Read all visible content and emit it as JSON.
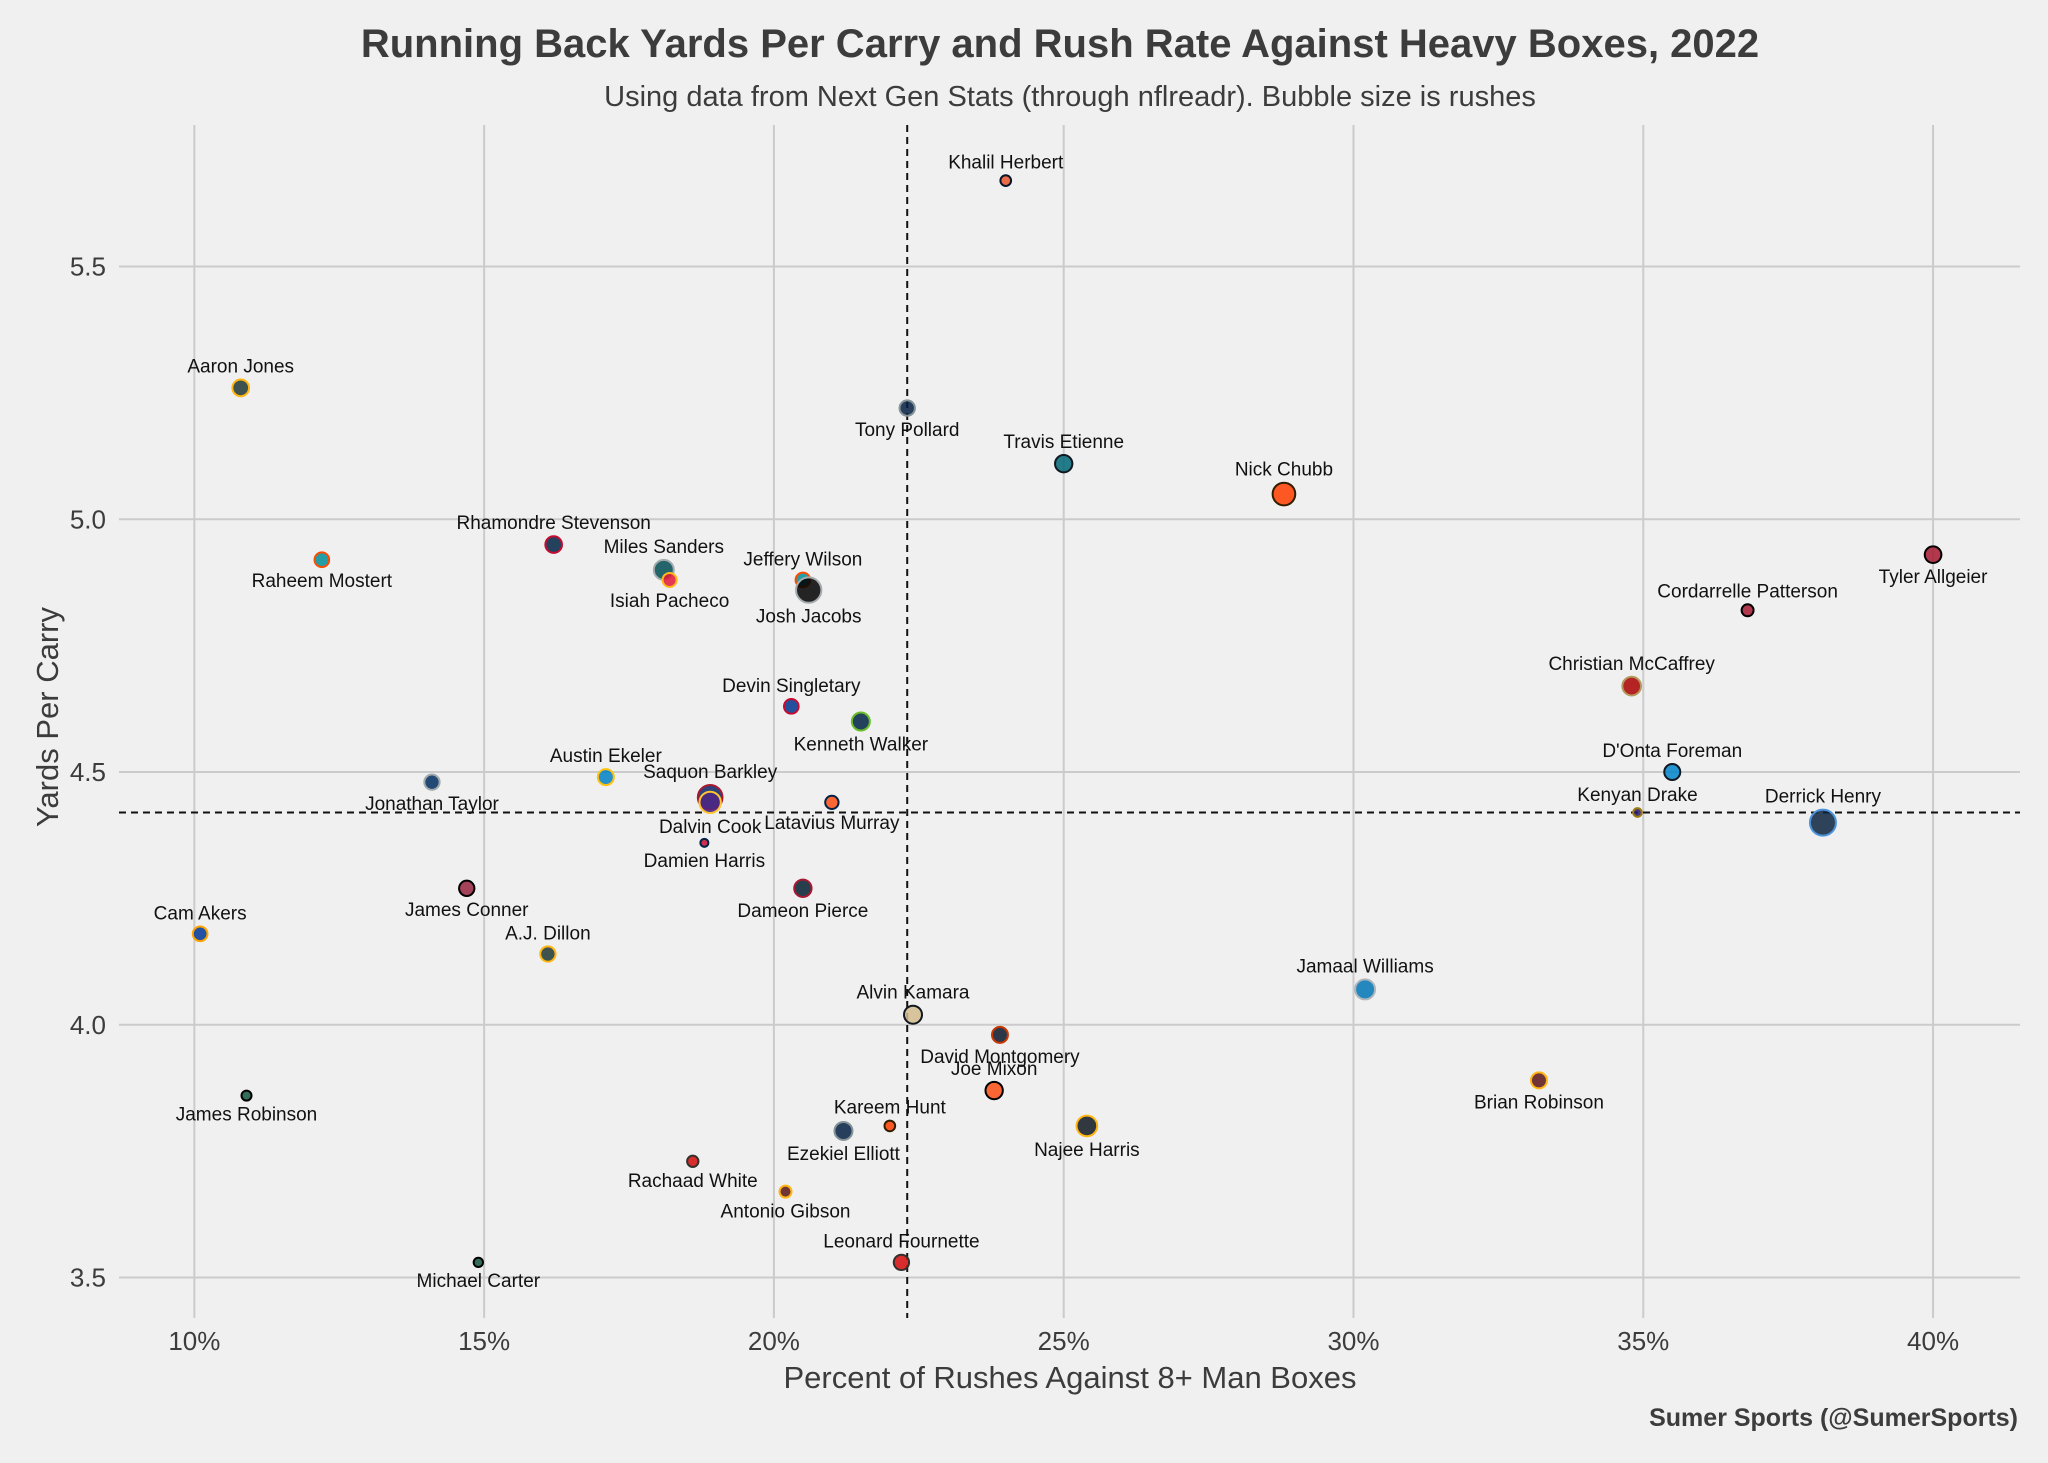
{
  "chart_data": {
    "type": "scatter",
    "title": "Running Back Yards Per Carry and Rush Rate Against Heavy Boxes, 2022",
    "subtitle": "Using data from Next Gen Stats (through nflreadr). Bubble size is rushes",
    "xlabel": "Percent of Rushes Against 8+ Man Boxes",
    "ylabel": "Yards Per Carry",
    "credit": "Sumer Sports (@SumerSports)",
    "xlim": [
      8.7,
      41.5
    ],
    "ylim": [
      3.42,
      5.78
    ],
    "x_ticks": [
      10,
      15,
      20,
      25,
      30,
      35,
      40
    ],
    "x_tick_labels": [
      "10%",
      "15%",
      "20%",
      "25%",
      "30%",
      "35%",
      "40%"
    ],
    "y_ticks": [
      3.5,
      4.0,
      4.5,
      5.0,
      5.5
    ],
    "y_tick_labels": [
      "3.5",
      "4.0",
      "4.5",
      "5.0",
      "5.5"
    ],
    "grid": true,
    "reference_lines": {
      "x": 22.3,
      "y": 4.42
    },
    "points": [
      {
        "name": "Khalil Herbert",
        "x": 24.0,
        "y": 5.67,
        "rushes": 120,
        "fill": "#e6552a",
        "edge": "#0b162a",
        "label_pos": "above"
      },
      {
        "name": "Aaron Jones",
        "x": 10.8,
        "y": 5.26,
        "rushes": 210,
        "fill": "#203731",
        "edge": "#ffb612",
        "label_pos": "above"
      },
      {
        "name": "Tony Pollard",
        "x": 22.3,
        "y": 5.22,
        "rushes": 190,
        "fill": "#041e42",
        "edge": "#869397",
        "label_pos": "below"
      },
      {
        "name": "Travis Etienne",
        "x": 25.0,
        "y": 5.11,
        "rushes": 220,
        "fill": "#006778",
        "edge": "#101820",
        "label_pos": "above"
      },
      {
        "name": "Nick Chubb",
        "x": 28.8,
        "y": 5.05,
        "rushes": 300,
        "fill": "#ff3c00",
        "edge": "#311d00",
        "label_pos": "above"
      },
      {
        "name": "Tyler Allgeier",
        "x": 40.0,
        "y": 4.93,
        "rushes": 210,
        "fill": "#a71930",
        "edge": "#000000",
        "label_pos": "below"
      },
      {
        "name": "Raheem Mostert",
        "x": 12.2,
        "y": 4.92,
        "rushes": 180,
        "fill": "#008e97",
        "edge": "#fc4c02",
        "label_pos": "below"
      },
      {
        "name": "Rhamondre Stevenson",
        "x": 16.2,
        "y": 4.95,
        "rushes": 210,
        "fill": "#002244",
        "edge": "#c60c30",
        "label_pos": "above"
      },
      {
        "name": "Miles Sanders",
        "x": 18.1,
        "y": 4.9,
        "rushes": 260,
        "fill": "#004c54",
        "edge": "#a5acaf",
        "label_pos": "above"
      },
      {
        "name": "Isiah Pacheco",
        "x": 18.2,
        "y": 4.88,
        "rushes": 170,
        "fill": "#e31837",
        "edge": "#ffb81c",
        "label_pos": "below"
      },
      {
        "name": "Jeffery Wilson",
        "x": 20.5,
        "y": 4.88,
        "rushes": 180,
        "fill": "#008e97",
        "edge": "#fc4c02",
        "label_pos": "above"
      },
      {
        "name": "Josh Jacobs",
        "x": 20.6,
        "y": 4.86,
        "rushes": 340,
        "fill": "#000000",
        "edge": "#a5acaf",
        "label_pos": "below"
      },
      {
        "name": "Cordarrelle Patterson",
        "x": 36.8,
        "y": 4.82,
        "rushes": 140,
        "fill": "#a71930",
        "edge": "#000000",
        "label_pos": "above"
      },
      {
        "name": "Christian McCaffrey",
        "x": 34.8,
        "y": 4.67,
        "rushes": 240,
        "fill": "#aa0000",
        "edge": "#b3995d",
        "label_pos": "above"
      },
      {
        "name": "Devin Singletary",
        "x": 20.3,
        "y": 4.63,
        "rushes": 180,
        "fill": "#00338d",
        "edge": "#c60c30",
        "label_pos": "above"
      },
      {
        "name": "Kenneth Walker",
        "x": 21.5,
        "y": 4.6,
        "rushes": 230,
        "fill": "#002244",
        "edge": "#69be28",
        "label_pos": "below"
      },
      {
        "name": "D'Onta Foreman",
        "x": 35.5,
        "y": 4.5,
        "rushes": 200,
        "fill": "#0085ca",
        "edge": "#101820",
        "label_pos": "above"
      },
      {
        "name": "Jonathan Taylor",
        "x": 14.1,
        "y": 4.48,
        "rushes": 190,
        "fill": "#002c5f",
        "edge": "#a2aaad",
        "label_pos": "below"
      },
      {
        "name": "Austin Ekeler",
        "x": 17.1,
        "y": 4.49,
        "rushes": 200,
        "fill": "#0080c6",
        "edge": "#ffc20e",
        "label_pos": "above"
      },
      {
        "name": "Saquon Barkley",
        "x": 18.9,
        "y": 4.45,
        "rushes": 330,
        "fill": "#0b2265",
        "edge": "#a71930",
        "label_pos": "above"
      },
      {
        "name": "Latavius Murray",
        "x": 21.0,
        "y": 4.44,
        "rushes": 160,
        "fill": "#fb4f14",
        "edge": "#002244",
        "label_pos": "below"
      },
      {
        "name": "Dalvin Cook",
        "x": 18.9,
        "y": 4.44,
        "rushes": 280,
        "fill": "#4f2683",
        "edge": "#ffc62f",
        "label_pos": "below"
      },
      {
        "name": "Kenyan Drake",
        "x": 34.9,
        "y": 4.42,
        "rushes": 90,
        "fill": "#241773",
        "edge": "#9e7c0c",
        "label_pos": "above"
      },
      {
        "name": "Derrick Henry",
        "x": 38.1,
        "y": 4.4,
        "rushes": 350,
        "fill": "#0c2340",
        "edge": "#4b92db",
        "label_pos": "above"
      },
      {
        "name": "Damien Harris",
        "x": 18.8,
        "y": 4.36,
        "rushes": 80,
        "fill": "#c60c30",
        "edge": "#002244",
        "label_pos": "below"
      },
      {
        "name": "James Conner",
        "x": 14.7,
        "y": 4.27,
        "rushes": 190,
        "fill": "#97233f",
        "edge": "#000000",
        "label_pos": "below"
      },
      {
        "name": "Dameon Pierce",
        "x": 20.5,
        "y": 4.27,
        "rushes": 220,
        "fill": "#03202f",
        "edge": "#a71930",
        "label_pos": "below"
      },
      {
        "name": "Cam Akers",
        "x": 10.1,
        "y": 4.18,
        "rushes": 180,
        "fill": "#003594",
        "edge": "#ffa300",
        "label_pos": "above"
      },
      {
        "name": "A.J. Dillon",
        "x": 16.1,
        "y": 4.14,
        "rushes": 190,
        "fill": "#203731",
        "edge": "#ffb612",
        "label_pos": "above"
      },
      {
        "name": "Jamaal Williams",
        "x": 30.2,
        "y": 4.07,
        "rushes": 260,
        "fill": "#0076b6",
        "edge": "#b0b7bc",
        "label_pos": "above"
      },
      {
        "name": "Alvin Kamara",
        "x": 22.4,
        "y": 4.02,
        "rushes": 230,
        "fill": "#d3bc8d",
        "edge": "#101820",
        "label_pos": "above"
      },
      {
        "name": "David Montgomery",
        "x": 23.9,
        "y": 3.98,
        "rushes": 200,
        "fill": "#0b162a",
        "edge": "#c83803",
        "label_pos": "below"
      },
      {
        "name": "Brian Robinson",
        "x": 33.2,
        "y": 3.89,
        "rushes": 200,
        "fill": "#5a1414",
        "edge": "#ffb612",
        "label_pos": "below"
      },
      {
        "name": "Joe Mixon",
        "x": 23.8,
        "y": 3.87,
        "rushes": 220,
        "fill": "#fb4f14",
        "edge": "#000000",
        "label_pos": "above"
      },
      {
        "name": "James Robinson",
        "x": 10.9,
        "y": 3.86,
        "rushes": 110,
        "fill": "#125740",
        "edge": "#000000",
        "label_pos": "below"
      },
      {
        "name": "Najee Harris",
        "x": 25.4,
        "y": 3.8,
        "rushes": 270,
        "fill": "#101820",
        "edge": "#ffb612",
        "label_pos": "below"
      },
      {
        "name": "Kareem Hunt",
        "x": 22.0,
        "y": 3.8,
        "rushes": 120,
        "fill": "#ff3c00",
        "edge": "#311d00",
        "label_pos": "above"
      },
      {
        "name": "Ezekiel Elliott",
        "x": 21.2,
        "y": 3.79,
        "rushes": 230,
        "fill": "#041e42",
        "edge": "#869397",
        "label_pos": "below"
      },
      {
        "name": "Rachaad White",
        "x": 18.6,
        "y": 3.73,
        "rushes": 130,
        "fill": "#d50a0a",
        "edge": "#34302b",
        "label_pos": "below"
      },
      {
        "name": "Antonio Gibson",
        "x": 20.2,
        "y": 3.67,
        "rushes": 140,
        "fill": "#5a1414",
        "edge": "#ffb612",
        "label_pos": "below"
      },
      {
        "name": "Leonard Fournette",
        "x": 22.2,
        "y": 3.53,
        "rushes": 190,
        "fill": "#d50a0a",
        "edge": "#34302b",
        "label_pos": "above"
      },
      {
        "name": "Michael Carter",
        "x": 14.9,
        "y": 3.53,
        "rushes": 100,
        "fill": "#125740",
        "edge": "#000000",
        "label_pos": "below"
      }
    ]
  }
}
